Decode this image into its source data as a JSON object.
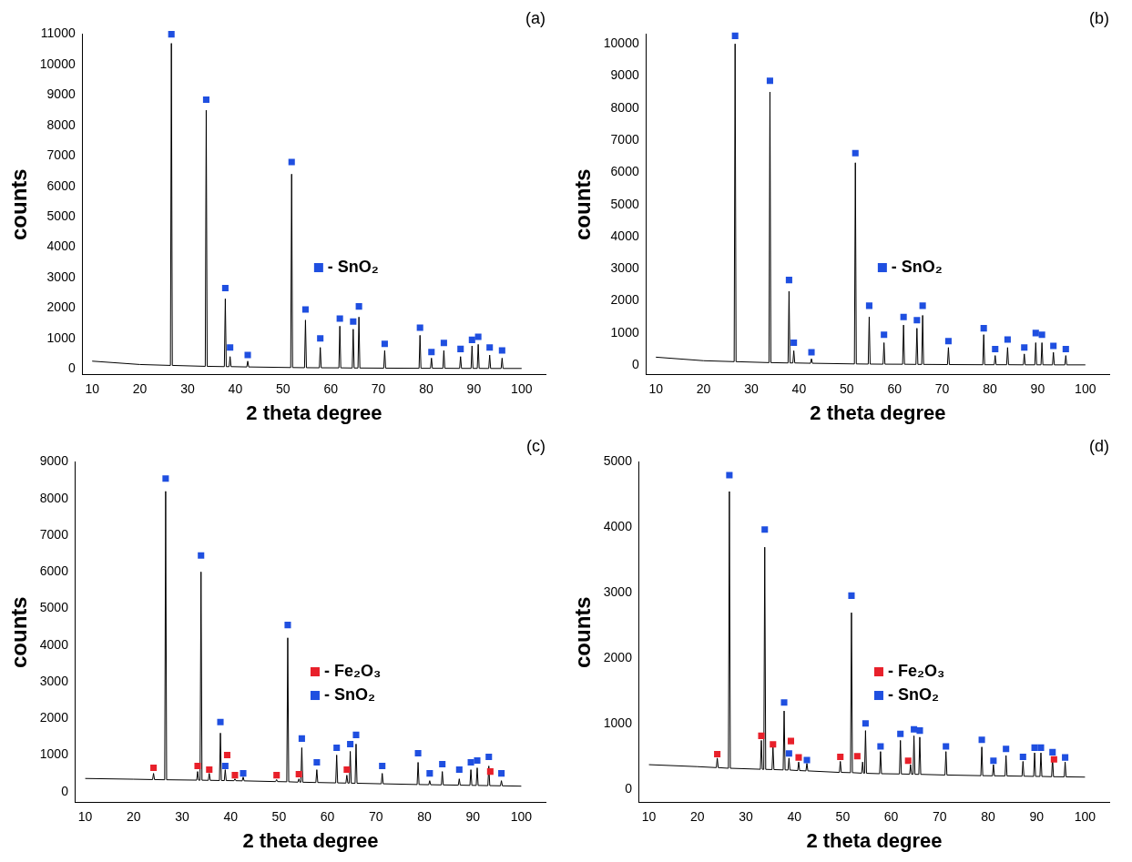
{
  "chart_data": [
    {
      "type": "line",
      "title": "(a)",
      "x_label": "2 theta degree",
      "y_label": "counts",
      "xlim": [
        8,
        105
      ],
      "xticks": [
        10,
        20,
        30,
        40,
        50,
        60,
        70,
        80,
        90,
        100
      ],
      "ylim": [
        -200,
        11000
      ],
      "yticks": [
        0,
        1000,
        2000,
        3000,
        4000,
        5000,
        6000,
        7000,
        8000,
        9000,
        10000,
        11000
      ],
      "grid": false,
      "legend": "right",
      "series": [
        {
          "type": "line",
          "color": "#000000",
          "line_style": "solid",
          "x": [
            10,
            20,
            26.4,
            26.6,
            26.8,
            33.7,
            33.9,
            34.1,
            37.7,
            37.9,
            38.1,
            38.7,
            38.9,
            39.1,
            42.4,
            42.6,
            42.8,
            51.6,
            51.8,
            52.0,
            54.5,
            54.7,
            54.9,
            57.6,
            57.8,
            58.0,
            61.7,
            61.9,
            62.1,
            64.5,
            64.7,
            64.9,
            65.7,
            65.9,
            66.1,
            71.1,
            71.3,
            71.5,
            78.5,
            78.7,
            78.9,
            80.9,
            81.1,
            81.3,
            83.5,
            83.7,
            83.9,
            87.0,
            87.2,
            87.4,
            89.4,
            89.6,
            89.8,
            90.7,
            90.9,
            91.1,
            93.1,
            93.3,
            93.5,
            95.7,
            95.9,
            96.1,
            100
          ],
          "values": [
            250,
            140,
            110,
            10700,
            110,
            80,
            8500,
            80,
            70,
            2300,
            70,
            70,
            400,
            70,
            60,
            250,
            60,
            40,
            6400,
            40,
            35,
            1600,
            35,
            32,
            700,
            32,
            30,
            1400,
            30,
            25,
            1300,
            25,
            25,
            1700,
            25,
            20,
            600,
            20,
            15,
            1100,
            15,
            15,
            350,
            15,
            15,
            600,
            15,
            12,
            400,
            12,
            12,
            750,
            12,
            12,
            800,
            12,
            10,
            450,
            10,
            10,
            350,
            10,
            10
          ]
        },
        {
          "name": "- SnO₂",
          "type": "scatter",
          "marker": "square",
          "color": "#1f4fe0",
          "x": [
            26.6,
            33.9,
            37.9,
            38.9,
            42.6,
            51.8,
            54.7,
            57.8,
            61.9,
            64.7,
            65.9,
            71.3,
            78.7,
            81.1,
            83.7,
            87.2,
            89.6,
            90.9,
            93.3,
            95.9
          ],
          "values": [
            11000,
            8850,
            2650,
            700,
            450,
            6800,
            1950,
            1000,
            1650,
            1550,
            2050,
            820,
            1350,
            550,
            850,
            650,
            950,
            1050,
            700,
            600
          ]
        }
      ]
    },
    {
      "type": "line",
      "title": "(b)",
      "x_label": "2 theta degree",
      "y_label": "counts",
      "xlim": [
        8,
        105
      ],
      "xticks": [
        10,
        20,
        30,
        40,
        50,
        60,
        70,
        80,
        90,
        100
      ],
      "ylim": [
        -300,
        10300
      ],
      "yticks": [
        0,
        1000,
        2000,
        3000,
        4000,
        5000,
        6000,
        7000,
        8000,
        9000,
        10000
      ],
      "grid": false,
      "legend": "right",
      "series": [
        {
          "type": "line",
          "color": "#000000",
          "line_style": "solid",
          "x": [
            10,
            20,
            26.4,
            26.6,
            26.8,
            33.7,
            33.9,
            34.1,
            37.7,
            37.9,
            38.1,
            38.7,
            38.9,
            39.1,
            42.4,
            42.6,
            42.8,
            51.6,
            51.8,
            52.0,
            54.5,
            54.7,
            54.9,
            57.6,
            57.8,
            58.0,
            61.7,
            61.9,
            62.1,
            64.5,
            64.7,
            64.9,
            65.7,
            65.9,
            66.1,
            71.1,
            71.3,
            71.5,
            78.5,
            78.7,
            78.9,
            80.9,
            81.1,
            81.3,
            83.5,
            83.7,
            83.9,
            87.0,
            87.2,
            87.4,
            89.4,
            89.6,
            89.8,
            90.7,
            90.9,
            91.1,
            93.1,
            93.3,
            93.5,
            95.7,
            95.9,
            96.1,
            100
          ],
          "values": [
            250,
            140,
            110,
            10000,
            110,
            80,
            8500,
            80,
            70,
            2300,
            70,
            70,
            450,
            70,
            60,
            200,
            60,
            40,
            6300,
            40,
            35,
            1500,
            35,
            32,
            700,
            32,
            30,
            1250,
            30,
            25,
            1150,
            25,
            25,
            1550,
            25,
            20,
            550,
            20,
            15,
            950,
            15,
            15,
            300,
            15,
            15,
            550,
            15,
            12,
            350,
            12,
            12,
            700,
            12,
            12,
            700,
            12,
            10,
            400,
            10,
            10,
            300,
            10,
            10
          ]
        },
        {
          "name": "- SnO₂",
          "type": "scatter",
          "marker": "square",
          "color": "#1f4fe0",
          "x": [
            26.6,
            33.9,
            37.9,
            38.9,
            42.6,
            51.8,
            54.7,
            57.8,
            61.9,
            64.7,
            65.9,
            71.3,
            78.7,
            81.1,
            83.7,
            87.2,
            89.6,
            90.9,
            93.3,
            95.9
          ],
          "values": [
            10250,
            8850,
            2650,
            700,
            400,
            6600,
            1850,
            950,
            1500,
            1400,
            1850,
            750,
            1150,
            500,
            800,
            550,
            1000,
            950,
            600,
            500
          ]
        }
      ]
    },
    {
      "type": "line",
      "title": "(c)",
      "x_label": "2 theta degree",
      "y_label": "counts",
      "xlim": [
        8,
        105
      ],
      "xticks": [
        10,
        20,
        30,
        40,
        50,
        60,
        70,
        80,
        90,
        100
      ],
      "ylim": [
        -300,
        9000
      ],
      "yticks": [
        0,
        1000,
        2000,
        3000,
        4000,
        5000,
        6000,
        7000,
        8000,
        9000
      ],
      "grid": false,
      "legend": "right",
      "series": [
        {
          "type": "line",
          "color": "#000000",
          "line_style": "solid",
          "x": [
            10,
            20,
            23.9,
            24.1,
            24.3,
            26.4,
            26.6,
            26.8,
            33.0,
            33.2,
            33.4,
            33.7,
            33.9,
            34.1,
            35.4,
            35.6,
            35.8,
            37.7,
            37.9,
            38.1,
            38.7,
            38.9,
            39.1,
            40.7,
            40.9,
            41.1,
            42.4,
            42.6,
            42.8,
            49.3,
            49.5,
            49.7,
            51.6,
            51.8,
            52.0,
            53.9,
            54.1,
            54.3,
            54.5,
            54.7,
            54.9,
            57.6,
            57.8,
            58.0,
            61.7,
            61.9,
            62.1,
            63.8,
            64.0,
            64.2,
            64.5,
            64.7,
            64.9,
            65.7,
            65.9,
            66.1,
            71.1,
            71.3,
            71.5,
            78.5,
            78.7,
            78.9,
            80.9,
            81.1,
            81.3,
            83.5,
            83.7,
            83.9,
            87.0,
            87.2,
            87.4,
            89.4,
            89.6,
            89.8,
            90.7,
            90.9,
            91.1,
            93.1,
            93.3,
            93.5,
            95.7,
            95.9,
            96.1,
            100
          ],
          "values": [
            360,
            340,
            330,
            500,
            330,
            325,
            8200,
            325,
            315,
            550,
            315,
            313,
            6000,
            313,
            310,
            500,
            310,
            305,
            1600,
            305,
            303,
            600,
            303,
            300,
            350,
            300,
            295,
            400,
            295,
            275,
            330,
            275,
            270,
            4200,
            270,
            260,
            350,
            260,
            258,
            1200,
            258,
            250,
            600,
            250,
            240,
            1000,
            240,
            235,
            450,
            235,
            233,
            1100,
            233,
            230,
            1300,
            230,
            215,
            500,
            215,
            195,
            800,
            195,
            190,
            300,
            190,
            185,
            550,
            185,
            178,
            350,
            178,
            173,
            600,
            173,
            170,
            650,
            170,
            165,
            700,
            165,
            160,
            300,
            160,
            150
          ]
        },
        {
          "name": "- Fe₂O₃",
          "type": "scatter",
          "marker": "square",
          "color": "#e8202a",
          "x": [
            24.1,
            33.2,
            35.6,
            39.3,
            40.9,
            49.5,
            54.1,
            64.0,
            93.6
          ],
          "values": [
            650,
            700,
            600,
            1000,
            450,
            450,
            480,
            600,
            550
          ]
        },
        {
          "name": "- SnO₂",
          "type": "scatter",
          "marker": "square",
          "color": "#1f4fe0",
          "x": [
            26.6,
            33.9,
            37.9,
            38.9,
            42.6,
            51.8,
            54.7,
            57.8,
            61.9,
            64.7,
            65.9,
            71.3,
            78.7,
            81.1,
            83.7,
            87.2,
            89.6,
            90.9,
            93.3,
            95.9
          ],
          "values": [
            8550,
            6450,
            1900,
            700,
            500,
            4550,
            1450,
            800,
            1200,
            1300,
            1550,
            700,
            1050,
            500,
            750,
            600,
            800,
            850,
            950,
            500
          ]
        }
      ]
    },
    {
      "type": "line",
      "title": "(d)",
      "x_label": "2 theta degree",
      "y_label": "counts",
      "xlim": [
        8,
        105
      ],
      "xticks": [
        10,
        20,
        30,
        40,
        50,
        60,
        70,
        80,
        90,
        100
      ],
      "ylim": [
        -200,
        5000
      ],
      "yticks": [
        0,
        1000,
        2000,
        3000,
        4000,
        5000
      ],
      "grid": false,
      "legend": "right",
      "series": [
        {
          "type": "line",
          "color": "#000000",
          "line_style": "solid",
          "x": [
            10,
            20,
            23.9,
            24.1,
            24.3,
            26.4,
            26.6,
            26.8,
            33.0,
            33.2,
            33.4,
            33.7,
            33.9,
            34.1,
            35.4,
            35.6,
            35.8,
            37.7,
            37.9,
            38.1,
            38.7,
            38.9,
            39.1,
            40.7,
            40.9,
            41.1,
            42.4,
            42.6,
            42.8,
            49.3,
            49.5,
            49.7,
            51.6,
            51.8,
            52.0,
            53.9,
            54.1,
            54.3,
            54.5,
            54.7,
            54.9,
            57.6,
            57.8,
            58.0,
            61.7,
            61.9,
            62.1,
            63.8,
            64.0,
            64.2,
            64.5,
            64.7,
            64.9,
            65.7,
            65.9,
            66.1,
            71.1,
            71.3,
            71.5,
            78.5,
            78.7,
            78.9,
            80.9,
            81.1,
            81.3,
            83.5,
            83.7,
            83.9,
            87.0,
            87.2,
            87.4,
            89.4,
            89.6,
            89.8,
            90.7,
            90.9,
            91.1,
            93.1,
            93.3,
            93.5,
            95.7,
            95.9,
            96.1,
            100
          ],
          "values": [
            380,
            350,
            335,
            480,
            335,
            325,
            4550,
            325,
            310,
            750,
            310,
            308,
            3700,
            308,
            305,
            650,
            305,
            300,
            1200,
            300,
            298,
            480,
            298,
            290,
            420,
            290,
            285,
            400,
            285,
            262,
            430,
            262,
            258,
            2700,
            258,
            250,
            420,
            250,
            248,
            900,
            248,
            242,
            580,
            242,
            238,
            750,
            238,
            235,
            380,
            235,
            233,
            820,
            233,
            232,
            800,
            232,
            222,
            580,
            222,
            212,
            650,
            212,
            210,
            380,
            210,
            208,
            520,
            208,
            204,
            430,
            204,
            201,
            560,
            201,
            200,
            560,
            200,
            196,
            480,
            196,
            194,
            420,
            194,
            190
          ]
        },
        {
          "name": "- Fe₂O₃",
          "type": "scatter",
          "marker": "square",
          "color": "#e8202a",
          "x": [
            24.1,
            33.2,
            35.6,
            39.3,
            40.9,
            49.5,
            53.0,
            63.5,
            93.6
          ],
          "values": [
            540,
            820,
            690,
            740,
            490,
            500,
            510,
            440,
            460
          ]
        },
        {
          "name": "- SnO₂",
          "type": "scatter",
          "marker": "square",
          "color": "#1f4fe0",
          "x": [
            26.6,
            33.9,
            37.9,
            38.9,
            42.6,
            51.8,
            54.7,
            57.8,
            61.9,
            64.7,
            65.9,
            71.3,
            78.7,
            81.1,
            83.7,
            87.2,
            89.6,
            90.9,
            93.3,
            95.9
          ],
          "values": [
            4800,
            3970,
            1330,
            550,
            450,
            2960,
            1010,
            660,
            850,
            920,
            900,
            660,
            760,
            440,
            620,
            500,
            640,
            640,
            570,
            490
          ]
        }
      ]
    }
  ]
}
